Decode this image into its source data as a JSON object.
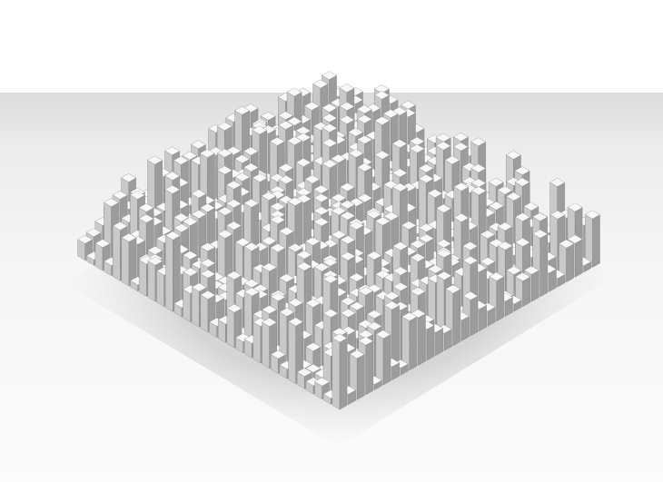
{
  "scene": {
    "subject": "isometric-block-city",
    "grid_size": 30,
    "colors": {
      "background_top": "#ffffff",
      "floor": "#f4f4f4",
      "block_top": "#f8f8f8",
      "block_left": "#c9c9c9",
      "block_right": "#9c9c9c",
      "edge": "#7a7a7a",
      "shadow": "#d6d6d6"
    }
  }
}
